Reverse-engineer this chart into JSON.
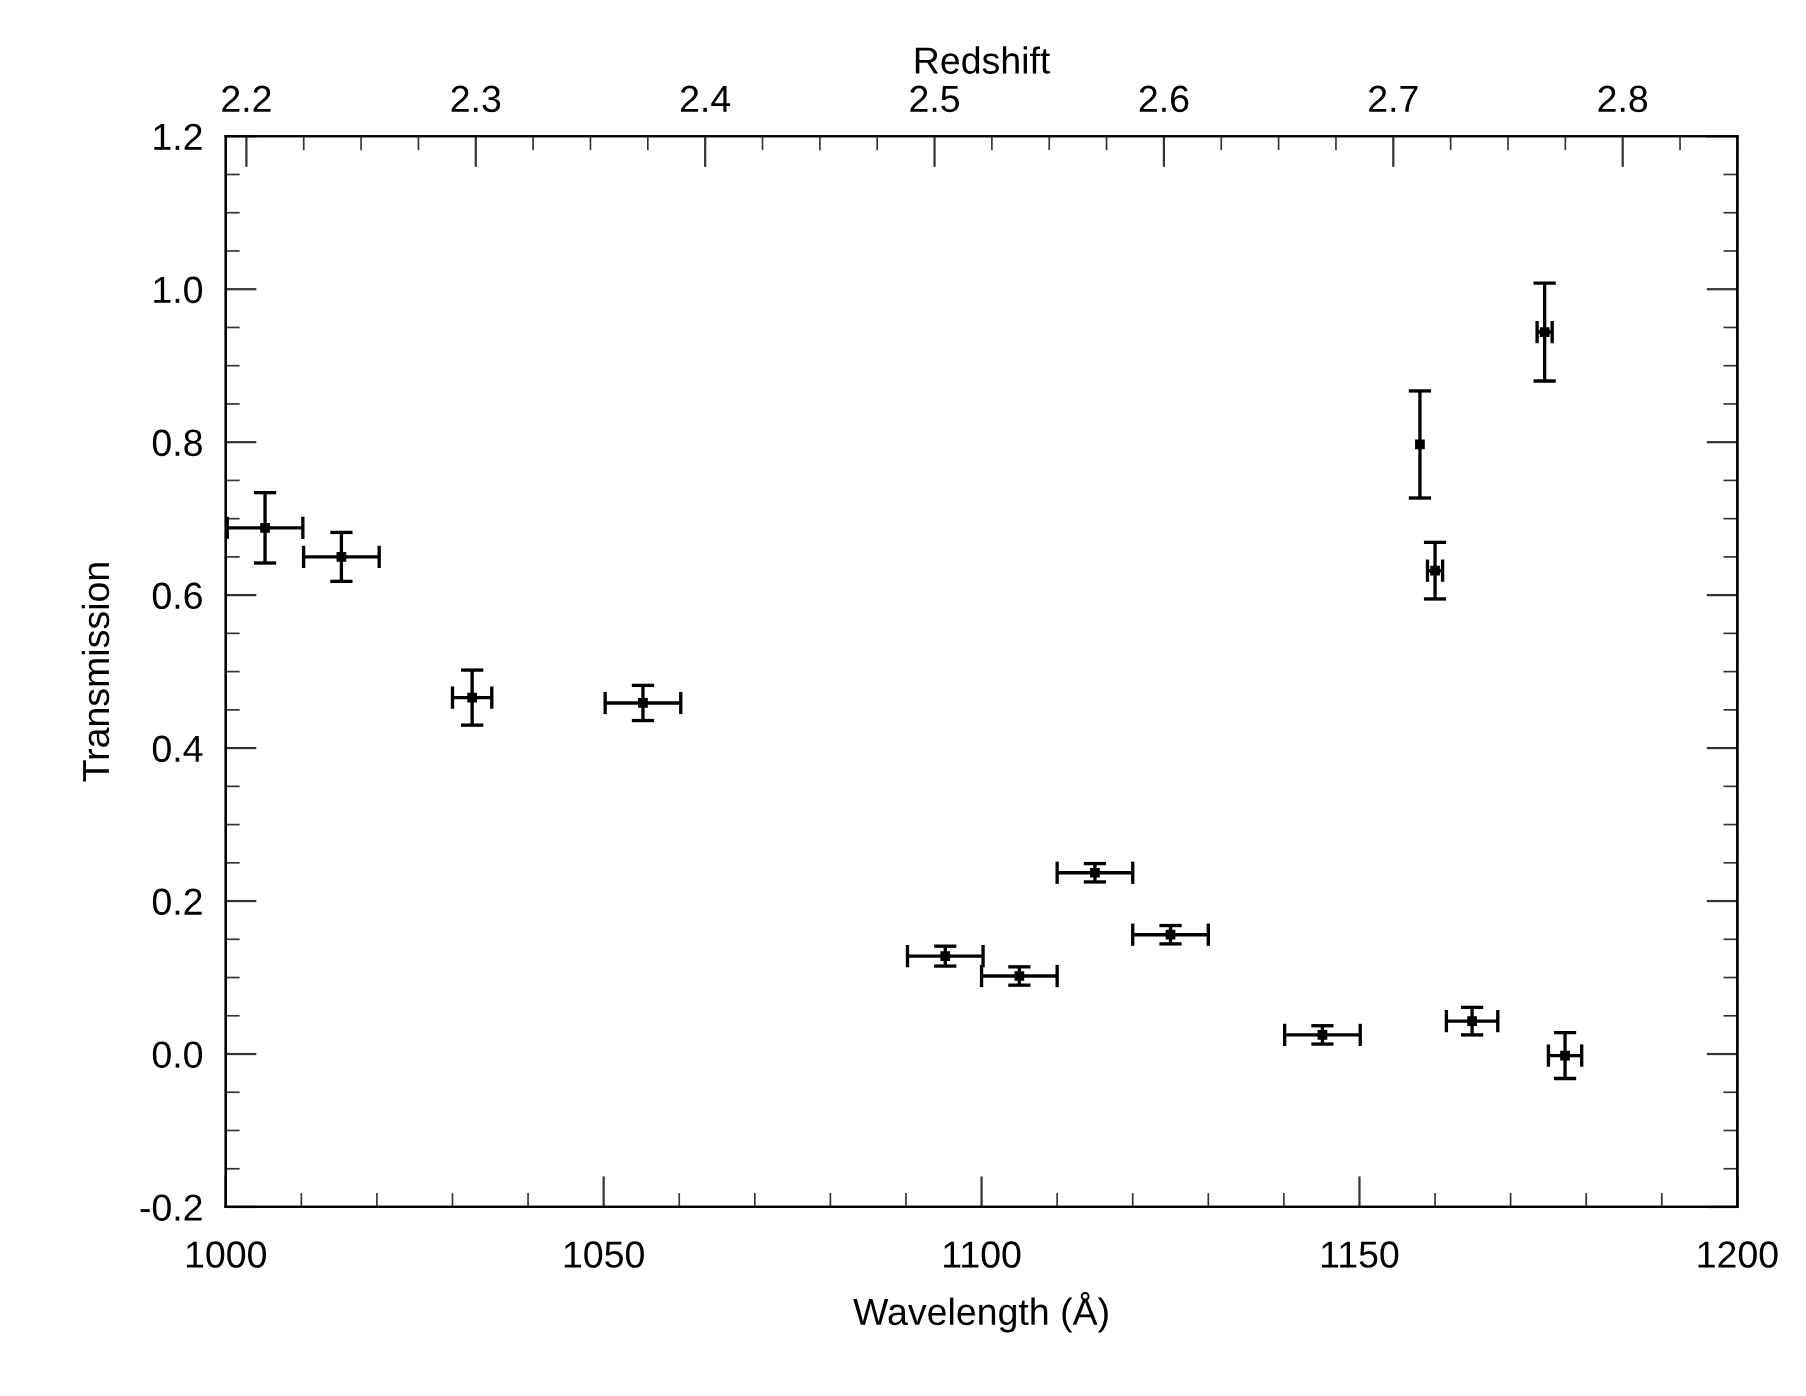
{
  "chart_data": {
    "type": "scatter",
    "xlabel": "Wavelength (Å)",
    "ylabel": "Transmission",
    "x2label": "Redshift",
    "x": [
      1005.2,
      1015.3,
      1032.6,
      1055.2,
      1095.2,
      1105.0,
      1115.0,
      1125.0,
      1145.1,
      1158.0,
      1160.0,
      1164.9,
      1174.5,
      1177.2
    ],
    "values": [
      0.688,
      0.65,
      0.466,
      0.459,
      0.128,
      0.102,
      0.237,
      0.156,
      0.025,
      0.797,
      0.632,
      0.043,
      0.944,
      -0.002
    ],
    "errors": [
      0.046,
      0.032,
      0.036,
      0.023,
      0.013,
      0.012,
      0.012,
      0.012,
      0.012,
      0.07,
      0.037,
      0.018,
      0.064,
      0.03
    ],
    "xerrors": [
      5,
      5,
      2.6,
      5,
      5,
      5,
      5,
      5,
      5,
      null,
      1,
      3.4,
      1,
      2.2
    ],
    "color": "#000000",
    "grid": false,
    "xlim": [
      1000,
      1200
    ],
    "xticks": [
      1000,
      1050,
      1100,
      1150,
      1200
    ],
    "ylim": [
      -0.2,
      1.2
    ],
    "yticks": [
      {
        "value": -0.2,
        "label": "-0.2"
      },
      {
        "value": 0.0,
        "label": "0.0"
      },
      {
        "value": 0.2,
        "label": "0.2"
      },
      {
        "value": 0.4,
        "label": "0.4"
      },
      {
        "value": 0.6,
        "label": "0.6"
      },
      {
        "value": 0.8,
        "label": "0.8"
      },
      {
        "value": 1.0,
        "label": "1.0"
      },
      {
        "value": 1.2,
        "label": "1.2"
      }
    ],
    "x2lim": [
      2.191,
      2.85
    ],
    "x2ticks": [
      2.2,
      2.3,
      2.4,
      2.5,
      2.6,
      2.7,
      2.8
    ]
  }
}
